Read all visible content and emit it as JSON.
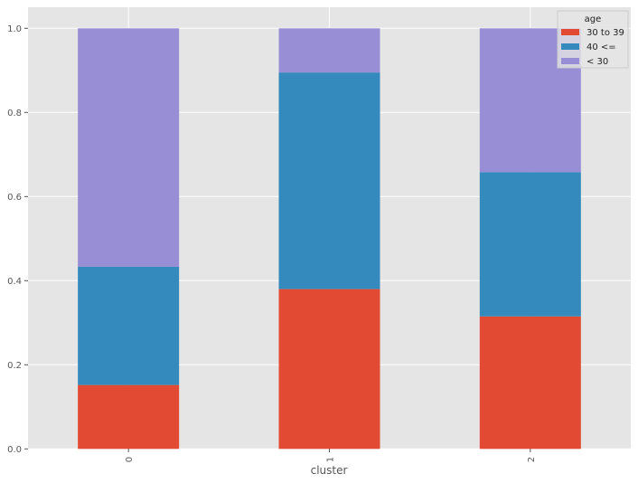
{
  "chart_data": {
    "type": "bar",
    "stacked": true,
    "title": "",
    "xlabel": "cluster",
    "ylabel": "",
    "categories": [
      "0",
      "1",
      "2"
    ],
    "series": [
      {
        "name": "30 to 39",
        "color": "#E24A33",
        "values": [
          0.152,
          0.38,
          0.315
        ]
      },
      {
        "name": "40 <=",
        "color": "#348ABD",
        "values": [
          0.281,
          0.515,
          0.343
        ]
      },
      {
        "name": "< 30",
        "color": "#988ED5",
        "values": [
          0.567,
          0.105,
          0.342
        ]
      }
    ],
    "ylim": [
      0,
      1.05
    ],
    "yticks": [
      "0.0",
      "0.2",
      "0.4",
      "0.6",
      "0.8",
      "1.0"
    ],
    "grid": true,
    "legend": {
      "title": "age",
      "placement": "top-right"
    }
  }
}
